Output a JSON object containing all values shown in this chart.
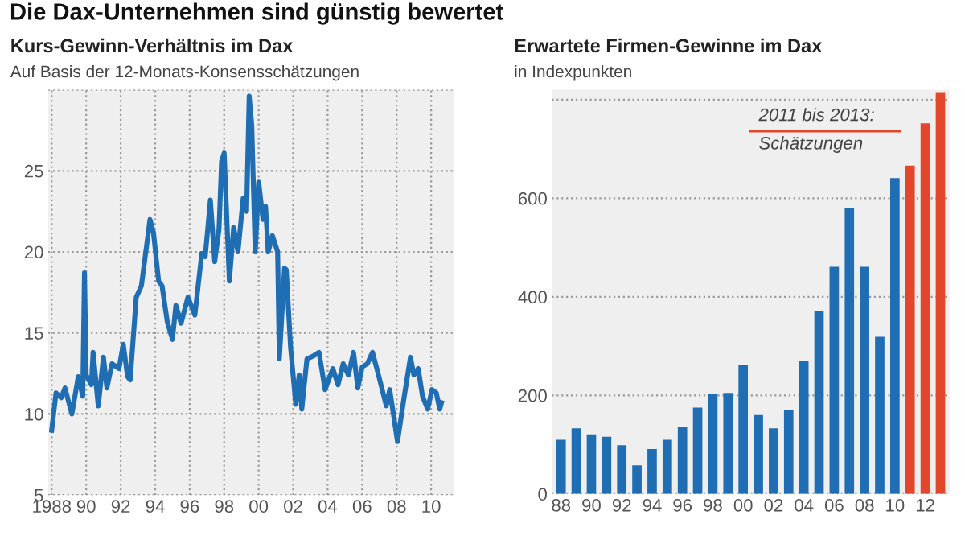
{
  "chart_data": [
    {
      "type": "other",
      "title": "Die Dax-Unternehmen sind günstig bewertet"
    },
    {
      "type": "line",
      "title": "Kurs-Gewinn-Verhältnis im Dax",
      "subtitle": "Auf Basis der 12-Monats-Konsensschätzungen",
      "x": [
        1988.0,
        1988.25,
        1988.55,
        1988.77,
        1989.17,
        1989.54,
        1989.8,
        1989.9,
        1990.0,
        1990.3,
        1990.4,
        1990.7,
        1991.0,
        1991.2,
        1991.5,
        1991.9,
        1992.15,
        1992.4,
        1992.55,
        1992.9,
        1993.2,
        1993.7,
        1993.9,
        1994.2,
        1994.4,
        1994.7,
        1995.0,
        1995.2,
        1995.5,
        1995.9,
        1996.3,
        1996.7,
        1996.9,
        1997.2,
        1997.45,
        1997.7,
        1997.85,
        1998.0,
        1998.3,
        1998.55,
        1998.8,
        1999.1,
        1999.3,
        1999.45,
        1999.6,
        1999.8,
        2000.0,
        2000.25,
        2000.4,
        2000.55,
        2000.8,
        2001.1,
        2001.2,
        2001.5,
        2001.6,
        2001.85,
        2002.15,
        2002.35,
        2002.5,
        2002.8,
        2003.2,
        2003.5,
        2003.85,
        2004.3,
        2004.6,
        2004.9,
        2005.2,
        2005.5,
        2005.75,
        2006.0,
        2006.3,
        2006.6,
        2006.9,
        2007.4,
        2007.6,
        2008.05,
        2008.4,
        2008.8,
        2009.0,
        2009.25,
        2009.5,
        2009.8,
        2010.05,
        2010.3,
        2010.5,
        2010.6
      ],
      "series": [
        {
          "color": "#1f6db3",
          "values": [
            9.0,
            11.3,
            11.0,
            11.6,
            10.0,
            12.3,
            11.1,
            18.7,
            12.4,
            11.8,
            13.8,
            10.5,
            13.5,
            11.6,
            13.1,
            12.8,
            14.3,
            12.3,
            12.1,
            17.2,
            17.9,
            22.0,
            21.2,
            18.2,
            17.9,
            15.7,
            14.6,
            16.7,
            15.6,
            17.2,
            16.1,
            19.9,
            19.7,
            23.2,
            19.4,
            21.4,
            25.6,
            26.1,
            18.2,
            21.5,
            20.0,
            23.3,
            22.5,
            29.6,
            27.8,
            20.0,
            24.3,
            22.0,
            22.8,
            20.0,
            21.0,
            20.0,
            13.4,
            19.0,
            18.9,
            14.1,
            10.6,
            12.4,
            10.3,
            13.4,
            13.6,
            13.8,
            11.5,
            12.8,
            11.8,
            13.1,
            12.4,
            13.8,
            11.6,
            12.9,
            13.1,
            13.8,
            12.6,
            10.5,
            11.5,
            8.3,
            10.8,
            13.5,
            12.4,
            12.8,
            11.1,
            10.3,
            11.5,
            11.3,
            10.3,
            10.7
          ]
        }
      ],
      "xlim": [
        1987.8,
        2011.3
      ],
      "ylim": [
        5,
        30
      ],
      "xticks": [
        {
          "value": 1988,
          "label": "1988"
        },
        {
          "value": 1990,
          "label": "90"
        },
        {
          "value": 1992,
          "label": "92"
        },
        {
          "value": 1994,
          "label": "94"
        },
        {
          "value": 1996,
          "label": "96"
        },
        {
          "value": 1998,
          "label": "98"
        },
        {
          "value": 2000,
          "label": "00"
        },
        {
          "value": 2002,
          "label": "02"
        },
        {
          "value": 2004,
          "label": "04"
        },
        {
          "value": 2006,
          "label": "06"
        },
        {
          "value": 2008,
          "label": "08"
        },
        {
          "value": 2010,
          "label": "10"
        }
      ],
      "yticks": [
        5,
        10,
        15,
        20,
        25,
        {
          "value": 30,
          "label": null
        }
      ],
      "grid": true,
      "line_style": "solid",
      "marker": "none"
    },
    {
      "type": "bar",
      "title": "Erwartete Firmen-Gewinne im Dax",
      "subtitle": "in Indexpunkten",
      "categories": [
        "88",
        null,
        "90",
        null,
        "92",
        null,
        "94",
        null,
        "96",
        null,
        "98",
        null,
        "00",
        null,
        "02",
        null,
        "04",
        null,
        "06",
        null,
        "08",
        null,
        "10",
        null,
        "12",
        null
      ],
      "values": [
        110,
        133,
        121,
        116,
        99,
        58,
        91,
        110,
        137,
        175,
        203,
        205,
        261,
        160,
        133,
        170,
        269,
        372,
        461,
        580,
        461,
        319,
        641,
        666,
        752,
        815
      ],
      "colors": [
        "#1f6db3",
        "#1f6db3",
        "#1f6db3",
        "#1f6db3",
        "#1f6db3",
        "#1f6db3",
        "#1f6db3",
        "#1f6db3",
        "#1f6db3",
        "#1f6db3",
        "#1f6db3",
        "#1f6db3",
        "#1f6db3",
        "#1f6db3",
        "#1f6db3",
        "#1f6db3",
        "#1f6db3",
        "#1f6db3",
        "#1f6db3",
        "#1f6db3",
        "#1f6db3",
        "#1f6db3",
        "#1f6db3",
        "#e2472b",
        "#e2472b",
        "#e2472b"
      ],
      "ylim": [
        0,
        820
      ],
      "yticks": [
        0,
        200,
        400,
        600,
        {
          "value": 800,
          "label": null
        }
      ],
      "grid": "y",
      "annotations": [
        "2011 bis 2013:\nSchätzungen"
      ]
    }
  ]
}
